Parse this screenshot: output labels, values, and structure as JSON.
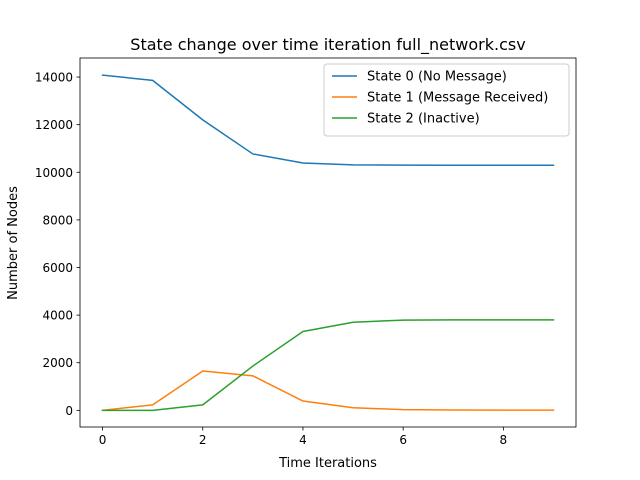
{
  "chart_data": {
    "type": "line",
    "title": "State change over time iteration full_network.csv",
    "xlabel": "Time Iterations",
    "ylabel": "Number of Nodes",
    "x": [
      0,
      1,
      2,
      3,
      4,
      5,
      6,
      7,
      8,
      9
    ],
    "xlim": [
      -0.45,
      9.45
    ],
    "ylim": [
      -700,
      14800
    ],
    "xticks": [
      0,
      2,
      4,
      6,
      8
    ],
    "yticks": [
      0,
      2000,
      4000,
      6000,
      8000,
      10000,
      12000,
      14000
    ],
    "grid": false,
    "legend_position": "top-right",
    "series": [
      {
        "name": "State 0 (No Message)",
        "color": "#1f77b4",
        "values": [
          14080,
          13860,
          12200,
          10770,
          10390,
          10310,
          10300,
          10295,
          10295,
          10295
        ]
      },
      {
        "name": "State 1 (Message Received)",
        "color": "#ff7f0e",
        "values": [
          0,
          230,
          1650,
          1450,
          390,
          110,
          30,
          15,
          10,
          10
        ]
      },
      {
        "name": "State 2 (Inactive)",
        "color": "#2ca02c",
        "values": [
          0,
          0,
          230,
          1860,
          3310,
          3700,
          3790,
          3800,
          3800,
          3800
        ]
      }
    ]
  }
}
